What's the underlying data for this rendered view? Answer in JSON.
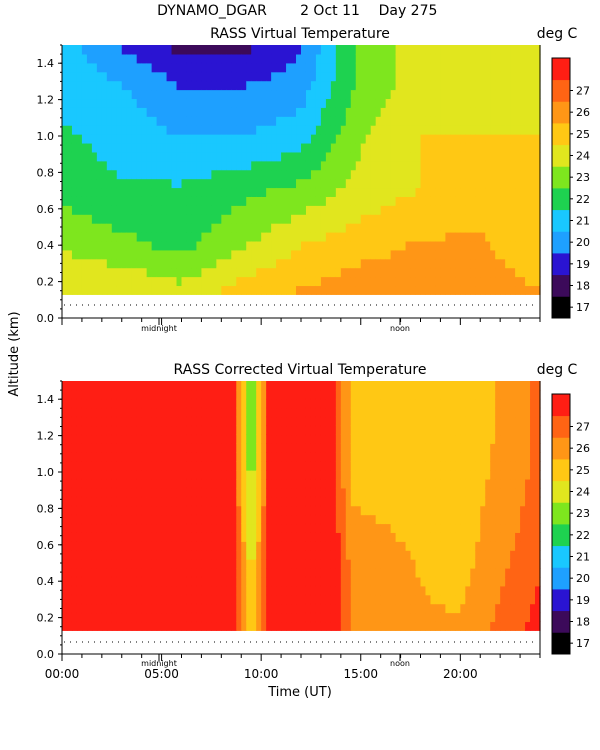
{
  "header": {
    "station": "DYNAMO_DGAR",
    "date": "2 Oct 11",
    "day_label": "Day 275"
  },
  "y_axis_label": "Altitude (km)",
  "x_axis_label": "Time (UT)",
  "markers": {
    "midnight": "midnight",
    "noon": "noon"
  },
  "colors": {
    "scale": [
      "#000000",
      "#3c0a5a",
      "#2a14d2",
      "#1ea0ff",
      "#19c8ff",
      "#1ed250",
      "#7ee61e",
      "#e1e61e",
      "#ffc814",
      "#ff9616",
      "#ff6414",
      "#ff1e14"
    ],
    "background": "#ffffff"
  },
  "chart_data": [
    {
      "type": "heatmap",
      "title": "RASS Virtual Temperature",
      "colorbar_title": "deg C",
      "colorbar_ticks": [
        "17",
        "18",
        "19",
        "20",
        "21",
        "22",
        "23",
        "24",
        "25",
        "26",
        "27"
      ],
      "zlim": [
        17,
        27.5
      ],
      "xlim": [
        0,
        24
      ],
      "ylim": [
        0,
        1.5
      ],
      "y_ticks": [
        "0.0",
        "0.2",
        "0.4",
        "0.6",
        "0.8",
        "1.0",
        "1.2",
        "1.4"
      ],
      "x_ticks": [],
      "x_range_hours": [
        0,
        24
      ],
      "altitude_range_km": [
        0.13,
        1.5
      ],
      "anchors": {
        "x_hours": [
          0,
          3,
          6,
          9,
          12,
          15,
          18,
          21,
          24
        ],
        "y_km": [
          0.13,
          0.4,
          0.7,
          1.0,
          1.3,
          1.5
        ],
        "values": [
          [
            24.0,
            24.0,
            23.5,
            24.5,
            25.0,
            25.5,
            25.5,
            25.5,
            25.0
          ],
          [
            23.0,
            22.5,
            22.0,
            23.0,
            24.0,
            24.5,
            25.0,
            25.0,
            24.0
          ],
          [
            22.0,
            21.5,
            21.5,
            22.0,
            22.5,
            23.5,
            24.0,
            24.5,
            24.0
          ],
          [
            21.5,
            21.0,
            20.5,
            20.5,
            21.0,
            23.0,
            24.0,
            24.0,
            24.0
          ],
          [
            21.0,
            20.5,
            19.5,
            19.5,
            20.0,
            22.5,
            23.5,
            23.5,
            24.0
          ],
          [
            21.0,
            19.5,
            18.5,
            18.5,
            19.5,
            22.5,
            23.5,
            23.5,
            24.0
          ]
        ]
      }
    },
    {
      "type": "heatmap",
      "title": "RASS Corrected Virtual Temperature",
      "colorbar_title": "deg C",
      "colorbar_ticks": [
        "17",
        "18",
        "19",
        "20",
        "21",
        "22",
        "23",
        "24",
        "25",
        "26",
        "27"
      ],
      "zlim": [
        17,
        27.5
      ],
      "xlim": [
        0,
        24
      ],
      "ylim": [
        0,
        1.5
      ],
      "y_ticks": [
        "0.0",
        "0.2",
        "0.4",
        "0.6",
        "0.8",
        "1.0",
        "1.2",
        "1.4"
      ],
      "x_ticks": [
        "00:00",
        "05:00",
        "10:00",
        "15:00",
        "20:00"
      ],
      "x_range_hours": [
        0,
        24
      ],
      "altitude_range_km": [
        0.13,
        1.5
      ],
      "anchors": {
        "x_hours": [
          0,
          3,
          6,
          8.5,
          9.5,
          10.5,
          12,
          13.5,
          14.5,
          17,
          20,
          22,
          24
        ],
        "y_km": [
          0.13,
          0.5,
          1.0,
          1.5
        ],
        "values": [
          [
            27.5,
            27.5,
            27.5,
            27.5,
            24.0,
            27.5,
            27.5,
            27.5,
            25.5,
            25.0,
            25.0,
            26.0,
            27.0
          ],
          [
            27.5,
            27.5,
            27.5,
            27.5,
            23.5,
            27.5,
            27.5,
            27.5,
            25.5,
            25.0,
            24.5,
            25.5,
            26.5
          ],
          [
            27.5,
            27.5,
            27.5,
            27.5,
            22.5,
            27.5,
            27.5,
            27.5,
            24.5,
            24.5,
            24.5,
            25.0,
            26.0
          ],
          [
            27.5,
            27.5,
            27.5,
            27.5,
            22.0,
            27.5,
            27.5,
            27.5,
            24.5,
            24.0,
            24.0,
            25.0,
            26.0
          ]
        ]
      }
    }
  ]
}
